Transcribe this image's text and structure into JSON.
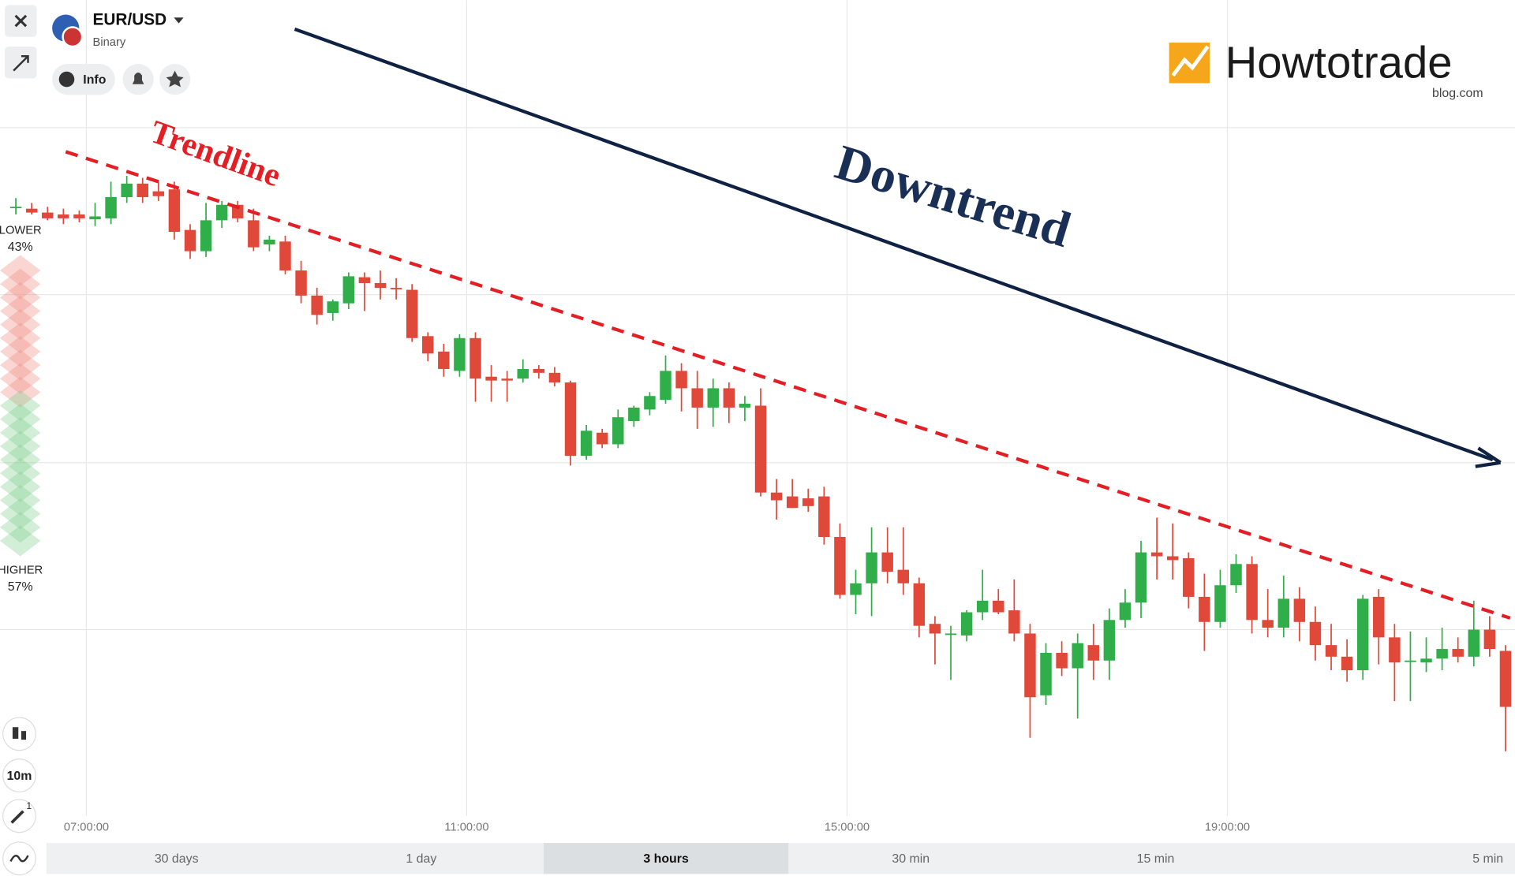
{
  "header": {
    "symbol": "EUR/USD",
    "mode": "Binary",
    "info": "Info"
  },
  "brand": {
    "name": "Howtotrade",
    "site": "blog.com"
  },
  "sidebar": {
    "lower": "LOWER",
    "lower_pct": "43%",
    "higher": "HIGHER",
    "higher_pct": "57%",
    "interval": "10m",
    "badge": "1"
  },
  "timeframes": [
    "30 days",
    "1 day",
    "3 hours",
    "30 min",
    "15 min",
    "5 min"
  ],
  "chart_data": {
    "type": "candlestick",
    "annotations": {
      "trendline": "Trendline",
      "trend": "Downtrend"
    },
    "xlim": [
      -1,
      94.6
    ],
    "ylim": [
      0,
      900
    ],
    "xticks": [
      {
        "value": 4.45,
        "label": "07:00:00"
      },
      {
        "value": 28.45,
        "label": "11:00:00"
      },
      {
        "value": 52.45,
        "label": "15:00:00"
      },
      {
        "value": 76.45,
        "label": "19:00:00"
      }
    ],
    "grid": true,
    "up_color": "#2fae4a",
    "down_color": "#e0483a",
    "candles": [
      [
        685,
        695,
        678,
        686
      ],
      [
        684,
        690,
        678,
        680
      ],
      [
        680,
        686,
        672,
        674
      ],
      [
        678,
        684,
        668,
        674
      ],
      [
        678,
        682,
        670,
        674
      ],
      [
        673,
        690,
        666,
        676
      ],
      [
        674,
        712,
        668,
        696
      ],
      [
        696,
        718,
        690,
        710
      ],
      [
        710,
        716,
        690,
        696
      ],
      [
        702,
        712,
        692,
        697
      ],
      [
        704,
        712,
        652,
        660
      ],
      [
        662,
        668,
        632,
        640
      ],
      [
        640,
        690,
        634,
        672
      ],
      [
        672,
        692,
        664,
        688
      ],
      [
        688,
        692,
        670,
        674
      ],
      [
        672,
        684,
        640,
        644
      ],
      [
        647,
        656,
        640,
        652
      ],
      [
        650,
        656,
        616,
        620
      ],
      [
        620,
        630,
        586,
        594
      ],
      [
        594,
        602,
        564,
        574
      ],
      [
        576,
        590,
        568,
        588
      ],
      [
        586,
        618,
        580,
        614
      ],
      [
        613,
        618,
        578,
        607
      ],
      [
        607,
        620,
        590,
        602
      ],
      [
        602,
        612,
        590,
        601
      ],
      [
        600,
        606,
        546,
        550
      ],
      [
        552,
        556,
        526,
        534
      ],
      [
        536,
        544,
        510,
        518
      ],
      [
        516,
        554,
        510,
        550
      ],
      [
        550,
        556,
        484,
        508
      ],
      [
        510,
        522,
        484,
        506
      ],
      [
        508,
        516,
        484,
        506
      ],
      [
        508,
        528,
        504,
        518
      ],
      [
        518,
        522,
        508,
        514
      ],
      [
        514,
        520,
        500,
        504
      ],
      [
        504,
        506,
        418,
        428
      ],
      [
        428,
        460,
        424,
        454
      ],
      [
        452,
        456,
        436,
        440
      ],
      [
        440,
        476,
        436,
        468
      ],
      [
        464,
        480,
        458,
        478
      ],
      [
        476,
        494,
        470,
        490
      ],
      [
        486,
        532,
        482,
        516
      ],
      [
        516,
        524,
        474,
        498
      ],
      [
        498,
        516,
        456,
        478
      ],
      [
        478,
        508,
        458,
        498
      ],
      [
        498,
        504,
        462,
        478
      ],
      [
        478,
        490,
        464,
        482
      ],
      [
        480,
        498,
        386,
        390
      ],
      [
        390,
        404,
        362,
        382
      ],
      [
        386,
        404,
        374,
        374
      ],
      [
        384,
        394,
        370,
        376
      ],
      [
        386,
        396,
        336,
        344
      ],
      [
        344,
        358,
        280,
        284
      ],
      [
        284,
        310,
        264,
        296
      ],
      [
        296,
        354,
        262,
        328
      ],
      [
        328,
        354,
        296,
        308
      ],
      [
        310,
        354,
        284,
        296
      ],
      [
        296,
        302,
        240,
        252
      ],
      [
        254,
        262,
        212,
        244
      ],
      [
        244,
        252,
        196,
        244
      ],
      [
        242,
        268,
        236,
        266
      ],
      [
        266,
        310,
        258,
        278
      ],
      [
        278,
        290,
        264,
        266
      ],
      [
        268,
        300,
        236,
        244
      ],
      [
        244,
        254,
        136,
        178
      ],
      [
        180,
        234,
        170,
        224
      ],
      [
        224,
        236,
        200,
        208
      ],
      [
        208,
        244,
        156,
        234
      ],
      [
        232,
        254,
        196,
        216
      ],
      [
        216,
        270,
        196,
        258
      ],
      [
        258,
        290,
        250,
        276
      ],
      [
        276,
        340,
        260,
        328
      ],
      [
        328,
        364,
        300,
        324
      ],
      [
        324,
        358,
        300,
        320
      ],
      [
        322,
        328,
        270,
        282
      ],
      [
        282,
        306,
        226,
        256
      ],
      [
        256,
        310,
        250,
        294
      ],
      [
        294,
        326,
        286,
        316
      ],
      [
        316,
        324,
        244,
        258
      ],
      [
        258,
        290,
        240,
        250
      ],
      [
        250,
        304,
        240,
        280
      ],
      [
        280,
        292,
        236,
        256
      ],
      [
        256,
        272,
        216,
        232
      ],
      [
        232,
        254,
        206,
        220
      ],
      [
        220,
        238,
        194,
        206
      ],
      [
        206,
        284,
        196,
        280
      ],
      [
        282,
        290,
        212,
        240
      ],
      [
        240,
        254,
        174,
        214
      ],
      [
        216,
        246,
        174,
        216
      ],
      [
        214,
        240,
        204,
        218
      ],
      [
        218,
        250,
        206,
        228
      ],
      [
        228,
        240,
        214,
        220
      ],
      [
        220,
        278,
        210,
        248
      ],
      [
        248,
        262,
        220,
        228
      ],
      [
        226,
        232,
        122,
        168
      ]
    ]
  }
}
